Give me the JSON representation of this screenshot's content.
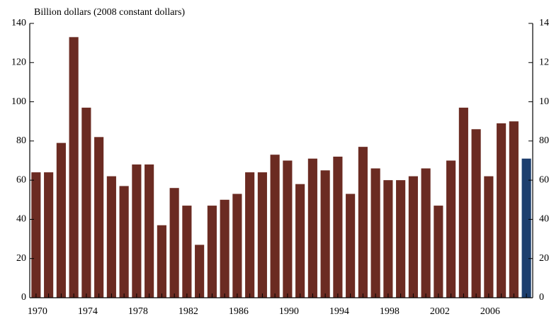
{
  "chart_data": {
    "type": "bar",
    "y_axis_label": "Billion dollars (2008 constant dollars)",
    "categories": [
      "1970",
      null,
      null,
      null,
      "1974",
      null,
      null,
      null,
      "1978",
      null,
      null,
      null,
      "1982",
      null,
      null,
      null,
      "1986",
      null,
      null,
      null,
      "1990",
      null,
      null,
      null,
      "1994",
      null,
      null,
      null,
      "1998",
      null,
      null,
      null,
      "2002",
      null,
      null,
      null,
      "2006",
      null,
      null,
      null
    ],
    "values": [
      64,
      64,
      79,
      133,
      97,
      82,
      62,
      57,
      68,
      68,
      37,
      56,
      47,
      27,
      47,
      50,
      53,
      64,
      64,
      73,
      70,
      58,
      71,
      65,
      72,
      53,
      77,
      66,
      60,
      60,
      62,
      66,
      47,
      70,
      97,
      86,
      62,
      89,
      90,
      71
    ],
    "colors": [
      "#6b2b22",
      "#6b2b22",
      "#6b2b22",
      "#6b2b22",
      "#6b2b22",
      "#6b2b22",
      "#6b2b22",
      "#6b2b22",
      "#6b2b22",
      "#6b2b22",
      "#6b2b22",
      "#6b2b22",
      "#6b2b22",
      "#6b2b22",
      "#6b2b22",
      "#6b2b22",
      "#6b2b22",
      "#6b2b22",
      "#6b2b22",
      "#6b2b22",
      "#6b2b22",
      "#6b2b22",
      "#6b2b22",
      "#6b2b22",
      "#6b2b22",
      "#6b2b22",
      "#6b2b22",
      "#6b2b22",
      "#6b2b22",
      "#6b2b22",
      "#6b2b22",
      "#6b2b22",
      "#6b2b22",
      "#6b2b22",
      "#6b2b22",
      "#6b2b22",
      "#6b2b22",
      "#6b2b22",
      "#6b2b22",
      "#1d3f6e"
    ],
    "ylim": [
      0,
      140
    ],
    "yticks": [
      0,
      20,
      40,
      60,
      80,
      100,
      120,
      140
    ],
    "grid": false
  }
}
